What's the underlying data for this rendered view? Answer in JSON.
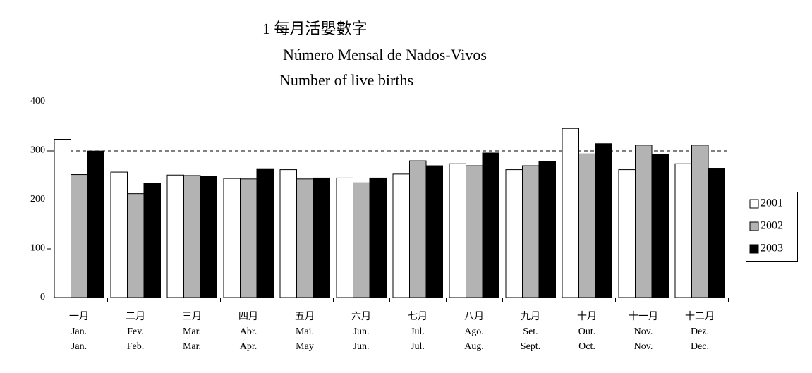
{
  "chart_data": {
    "type": "bar",
    "title": [
      "1 每月活嬰數字",
      "Número Mensal de Nados-Vivos",
      "Number of live births"
    ],
    "categories": [
      [
        "一月",
        "Jan.",
        "Jan."
      ],
      [
        "二月",
        "Fev.",
        "Feb."
      ],
      [
        "三月",
        "Mar.",
        "Mar."
      ],
      [
        "四月",
        "Abr.",
        "Apr."
      ],
      [
        "五月",
        "Mai.",
        "May"
      ],
      [
        "六月",
        "Jun.",
        "Jun."
      ],
      [
        "七月",
        "Jul.",
        "Jul."
      ],
      [
        "八月",
        "Ago.",
        "Aug."
      ],
      [
        "九月",
        "Set.",
        "Sept."
      ],
      [
        "十月",
        "Out.",
        "Oct."
      ],
      [
        "十一月",
        "Nov.",
        "Nov."
      ],
      [
        "十二月",
        "Dez.",
        "Dec."
      ]
    ],
    "series": [
      {
        "name": "2001",
        "color": "#ffffff",
        "values": [
          323,
          256,
          250,
          243,
          261,
          244,
          252,
          273,
          261,
          345,
          261,
          273
        ]
      },
      {
        "name": "2002",
        "color": "#b3b3b3",
        "values": [
          251,
          212,
          249,
          242,
          242,
          234,
          279,
          269,
          269,
          293,
          311,
          311
        ]
      },
      {
        "name": "2003",
        "color": "#000000",
        "values": [
          299,
          233,
          247,
          263,
          244,
          244,
          269,
          295,
          277,
          314,
          292,
          264
        ]
      }
    ],
    "ylim": [
      0,
      400
    ],
    "yticks": [
      0,
      100,
      200,
      300,
      400
    ],
    "gridlines": [
      300,
      400
    ],
    "legend": "right"
  }
}
